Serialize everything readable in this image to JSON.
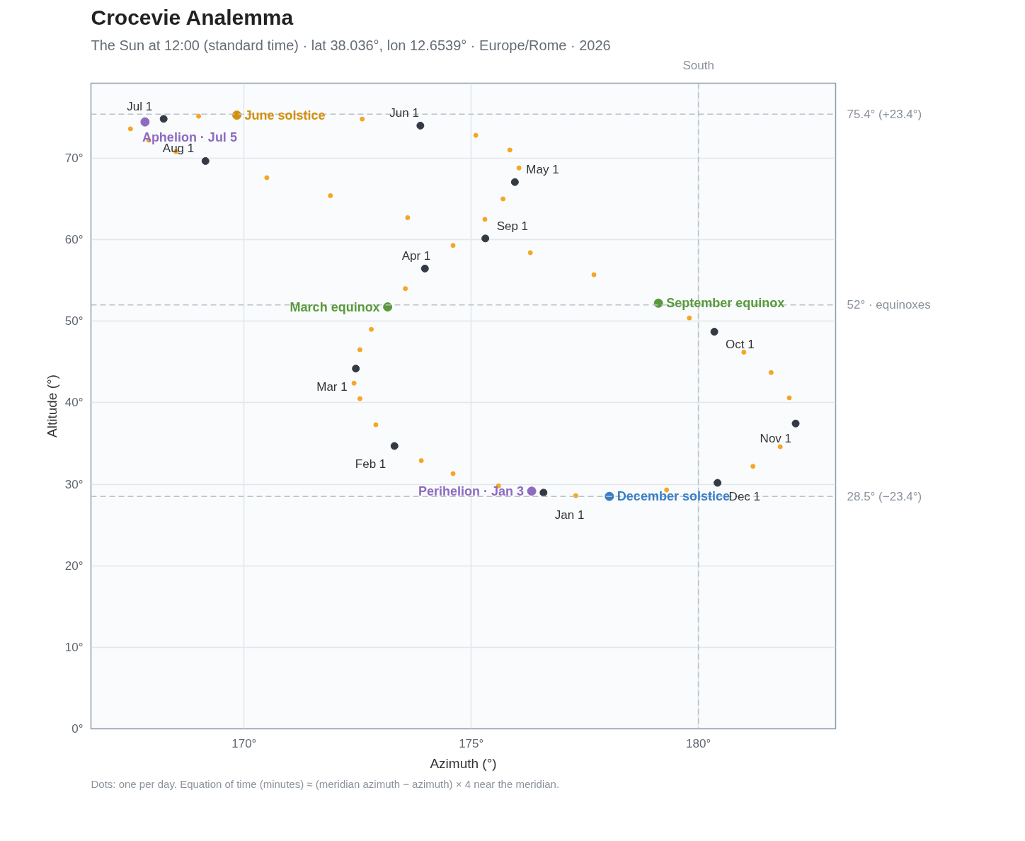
{
  "chart_data": {
    "type": "scatter",
    "title": "Crocevie Analemma",
    "subtitle": "The Sun at 12:00 (standard time) · lat 38.036°, lon 12.6539° · Europe/Rome · 2026",
    "xlabel": "Azimuth (°)",
    "ylabel": "Altitude (°)",
    "xlim": [
      166.63,
      183.02
    ],
    "ylim": [
      0,
      79.2
    ],
    "xticks": [
      {
        "value": 170,
        "label": "170°"
      },
      {
        "value": 175,
        "label": "175°"
      },
      {
        "value": 180,
        "label": "180°"
      }
    ],
    "yticks": [
      {
        "value": 0,
        "label": "0°"
      },
      {
        "value": 10,
        "label": "10°"
      },
      {
        "value": 20,
        "label": "20°"
      },
      {
        "value": 30,
        "label": "30°"
      },
      {
        "value": 40,
        "label": "40°"
      },
      {
        "value": 50,
        "label": "50°"
      },
      {
        "value": 60,
        "label": "60°"
      },
      {
        "value": 70,
        "label": "70°"
      }
    ],
    "grid": true,
    "marker": "circle",
    "series": [
      {
        "color": "#f5a623",
        "x": [
          175.6,
          174.6,
          173.9,
          172.9,
          172.55,
          172.42,
          172.55,
          172.8,
          173.55,
          174.6,
          175.3,
          175.7,
          176.05,
          175.85,
          175.1,
          172.6,
          169.0,
          167.5,
          167.9,
          168.5,
          170.5,
          171.9,
          173.6,
          176.3,
          177.7,
          179.8,
          181.0,
          181.6,
          182.0,
          181.8,
          181.2,
          179.3,
          177.3
        ],
        "values": [
          29.8,
          31.3,
          32.9,
          37.3,
          40.5,
          42.4,
          46.5,
          49.0,
          54.0,
          59.3,
          62.5,
          65.0,
          68.8,
          71.0,
          72.8,
          74.8,
          75.15,
          73.6,
          72.2,
          70.8,
          67.6,
          65.4,
          62.7,
          58.4,
          55.7,
          50.4,
          46.2,
          43.7,
          40.6,
          34.6,
          32.2,
          29.3,
          28.6
        ]
      },
      {
        "color": "#343a44",
        "x": [
          176.59,
          173.31,
          172.46,
          173.98,
          175.96,
          173.88,
          168.23,
          169.15,
          175.31,
          180.35,
          182.14,
          180.42
        ],
        "values": [
          28.97,
          34.69,
          44.19,
          56.46,
          67.07,
          73.99,
          74.82,
          69.65,
          60.15,
          48.71,
          37.45,
          30.17
        ]
      },
      {
        "name": "Aphelion · Jul 5",
        "color": "#8e6bbf",
        "x": [
          167.82
        ],
        "values": [
          74.45
        ]
      },
      {
        "name": "June solstice",
        "color": "#d4900a",
        "x": [
          169.84
        ],
        "values": [
          75.28
        ]
      },
      {
        "name": "March equinox",
        "color": "#5a9a3a",
        "x": [
          173.16
        ],
        "values": [
          51.75
        ]
      },
      {
        "name": "September equinox",
        "color": "#5a9a3a",
        "x": [
          179.12
        ],
        "values": [
          52.21
        ]
      },
      {
        "name": "Perihelion · Jan 3",
        "color": "#8e6bbf",
        "x": [
          176.33
        ],
        "values": [
          29.15
        ]
      },
      {
        "name": "December solstice",
        "color": "#3a7ec4",
        "x": [
          178.04
        ],
        "values": [
          28.51
        ]
      }
    ],
    "ref_lines": [
      {
        "axis": "y",
        "value": 75.4,
        "label": "75.4° (+23.4°)",
        "color": "#b8c2cc",
        "line_style": "dashed"
      },
      {
        "axis": "y",
        "value": 52,
        "label": "52° · equinoxes",
        "color": "#b8c2cc",
        "line_style": "dashed"
      },
      {
        "axis": "y",
        "value": 28.5,
        "label": "28.5° (−23.4°)",
        "color": "#b8c2cc",
        "line_style": "dashed"
      },
      {
        "axis": "x",
        "value": 180,
        "label": "South",
        "color": "#b8c2cc",
        "line_style": "dashed"
      }
    ],
    "annotations": [
      {
        "text": "Jan 1",
        "x": 176.59,
        "y": 28.97
      },
      {
        "text": "Feb 1",
        "x": 173.31,
        "y": 34.69
      },
      {
        "text": "Mar 1",
        "x": 172.46,
        "y": 44.19
      },
      {
        "text": "Apr 1",
        "x": 173.98,
        "y": 56.46
      },
      {
        "text": "May 1",
        "x": 175.96,
        "y": 67.07
      },
      {
        "text": "Jun 1",
        "x": 173.88,
        "y": 73.99
      },
      {
        "text": "Jul 1",
        "x": 168.23,
        "y": 74.82
      },
      {
        "text": "Aug 1",
        "x": 169.15,
        "y": 69.65
      },
      {
        "text": "Sep 1",
        "x": 175.31,
        "y": 60.15
      },
      {
        "text": "Oct 1",
        "x": 180.35,
        "y": 48.71
      },
      {
        "text": "Nov 1",
        "x": 182.14,
        "y": 37.45
      },
      {
        "text": "Dec 1",
        "x": 180.42,
        "y": 30.17
      },
      "Dots: one per day. Equation of time (minutes) ≈ (meridian azimuth − azimuth) × 4 near the meridian."
    ]
  }
}
